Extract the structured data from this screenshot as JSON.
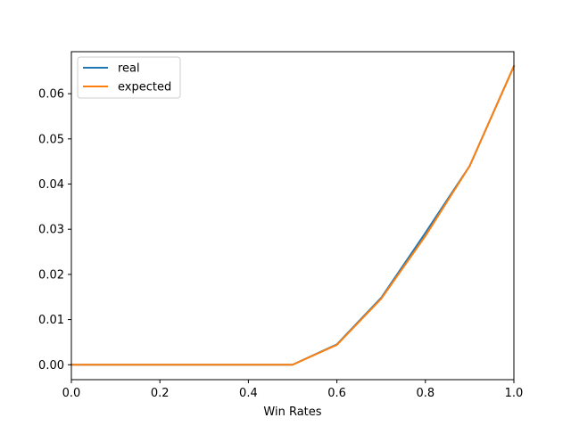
{
  "chart_data": {
    "type": "line",
    "title": "",
    "xlabel": "Win Rates",
    "ylabel": "",
    "xlim": [
      0.0,
      1.0
    ],
    "ylim": [
      -0.0033,
      0.0693
    ],
    "x_ticks": [
      0.0,
      0.2,
      0.4,
      0.6,
      0.8,
      1.0
    ],
    "x_tick_labels": [
      "0.0",
      "0.2",
      "0.4",
      "0.6",
      "0.8",
      "1.0"
    ],
    "y_ticks": [
      0.0,
      0.01,
      0.02,
      0.03,
      0.04,
      0.05,
      0.06
    ],
    "y_tick_labels": [
      "0.00",
      "0.01",
      "0.02",
      "0.03",
      "0.04",
      "0.05",
      "0.06"
    ],
    "grid": false,
    "legend_position": "top-left",
    "x": [
      0.0,
      0.1,
      0.2,
      0.3,
      0.4,
      0.5,
      0.6,
      0.7,
      0.8,
      0.9,
      1.0
    ],
    "series": [
      {
        "name": "real",
        "color": "#1f77b4",
        "values": [
          0.0,
          0.0,
          0.0,
          0.0,
          0.0,
          0.0,
          0.0045,
          0.0148,
          0.0292,
          0.044,
          0.0661
        ]
      },
      {
        "name": "expected",
        "color": "#ff7f0e",
        "values": [
          0.0,
          0.0,
          0.0,
          0.0,
          0.0,
          0.0,
          0.0044,
          0.0146,
          0.0285,
          0.044,
          0.0661
        ]
      }
    ]
  }
}
